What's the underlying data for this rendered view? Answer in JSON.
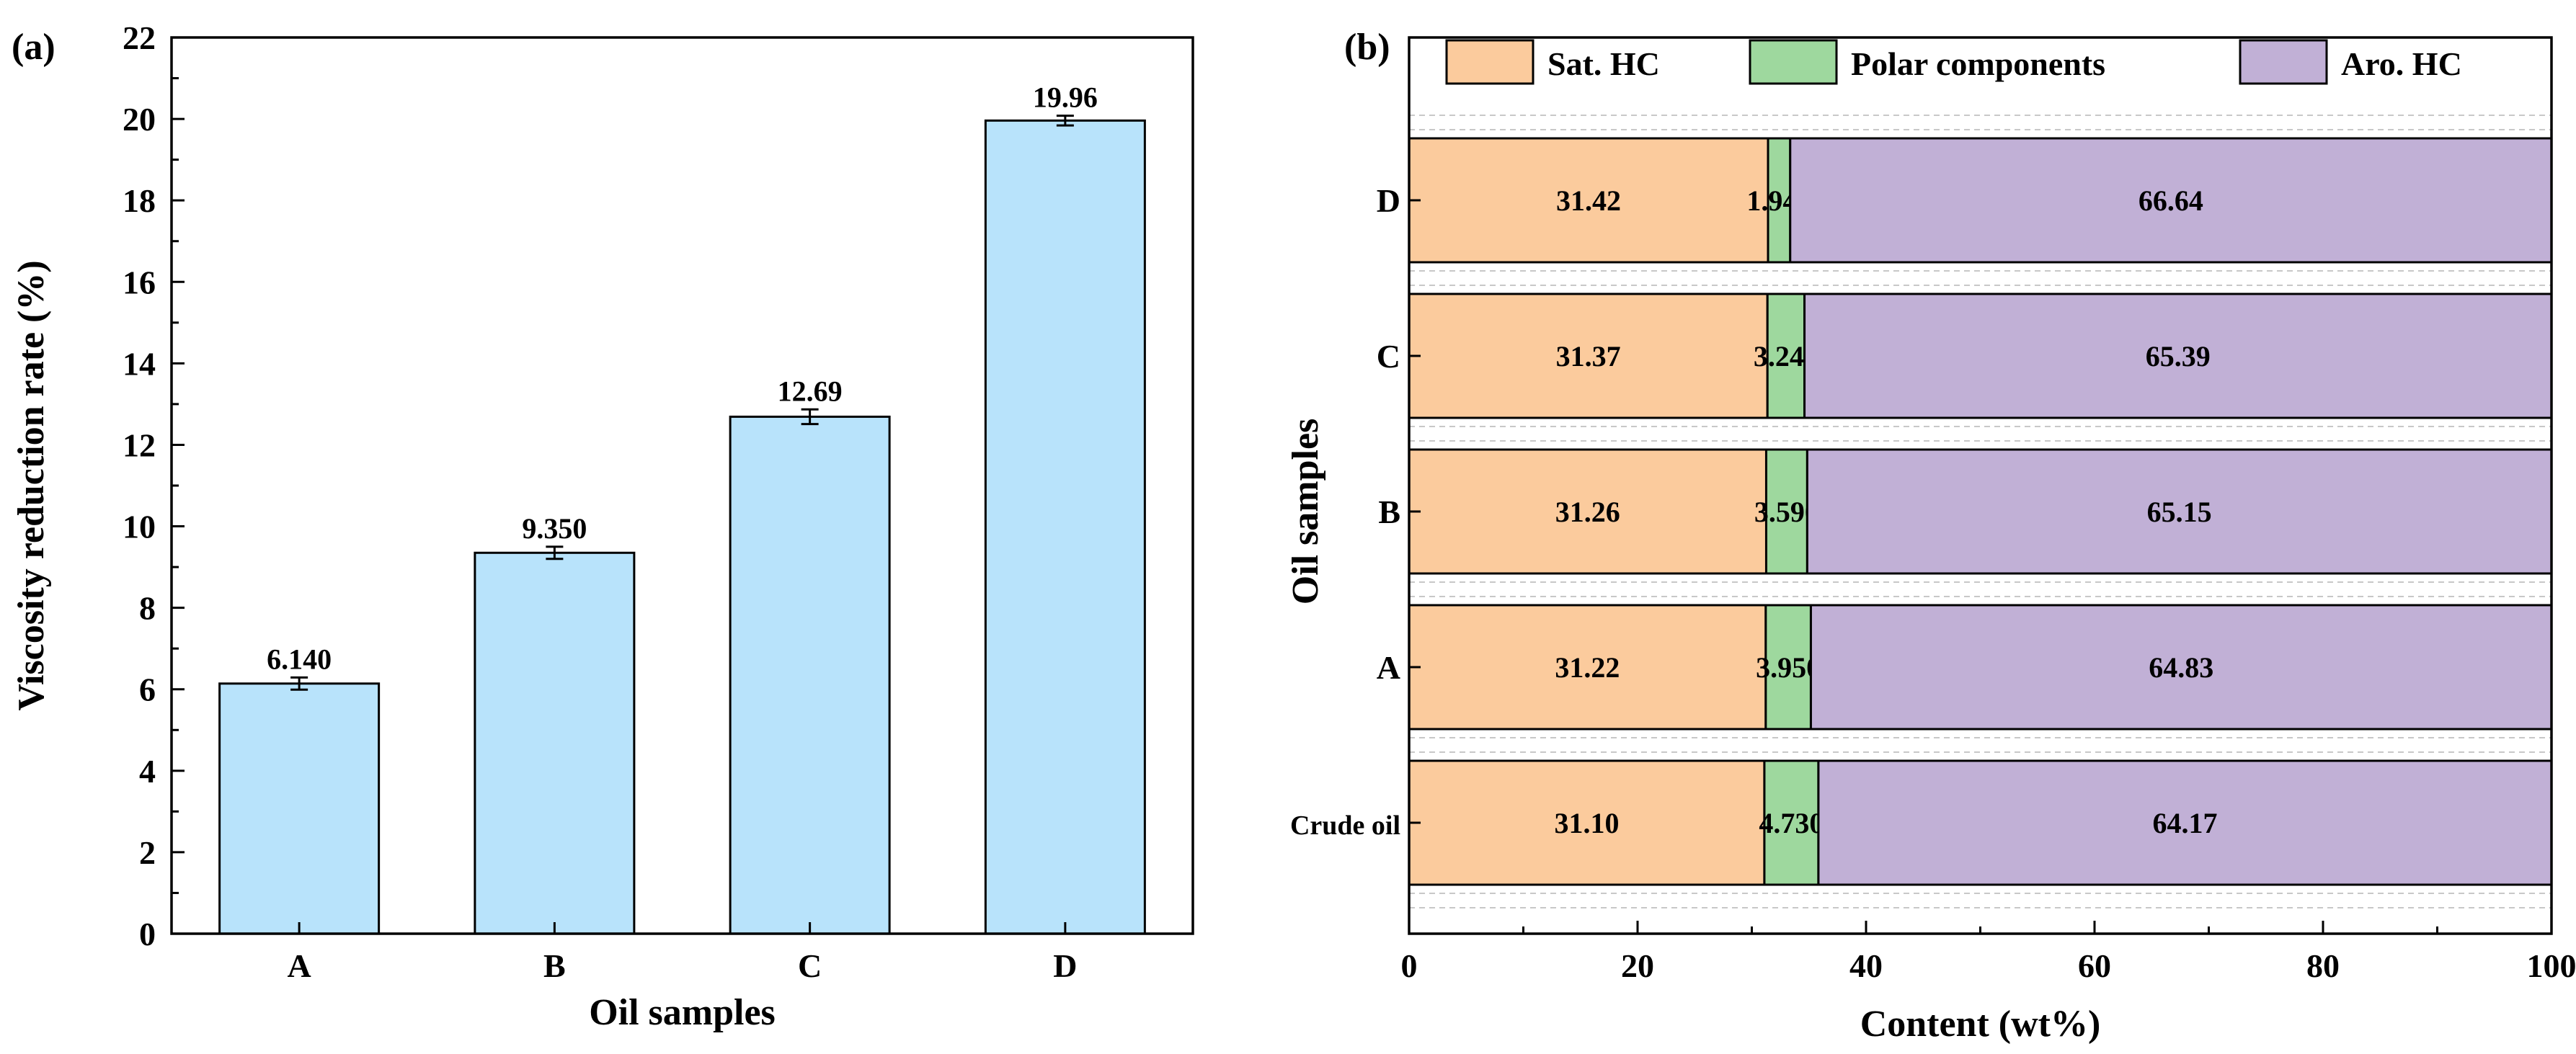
{
  "colors": {
    "bar_fill": "#b8e3fb",
    "sat_hc": "#fbcb9d",
    "polar": "#9ed89e",
    "aro_hc": "#c1b0d6",
    "axis": "#000000",
    "dashed": "#c8c8c8"
  },
  "chart_data": [
    {
      "panel_label": "(a)",
      "type": "bar",
      "title": "",
      "xlabel": "Oil samples",
      "ylabel": "Viscosity reduction rate (%)",
      "ylim": [
        0,
        22
      ],
      "yticks": [
        0,
        2,
        4,
        6,
        8,
        10,
        12,
        14,
        16,
        18,
        20,
        22
      ],
      "categories": [
        "A",
        "B",
        "C",
        "D"
      ],
      "values": [
        6.14,
        9.35,
        12.69,
        19.96
      ],
      "value_labels": [
        "6.140",
        "9.350",
        "12.69",
        "19.96"
      ],
      "errors": [
        0.15,
        0.15,
        0.18,
        0.12
      ]
    },
    {
      "panel_label": "(b)",
      "type": "bar",
      "orientation": "horizontal",
      "stacked": true,
      "xlabel": "Content (wt%)",
      "ylabel": "Oil samples",
      "xlim": [
        0,
        100
      ],
      "xticks": [
        0,
        20,
        40,
        60,
        80,
        100
      ],
      "legend_position": "top",
      "categories": [
        "Crude oil",
        "A",
        "B",
        "C",
        "D"
      ],
      "series": [
        {
          "name": "Sat. HC",
          "values": [
            31.1,
            31.22,
            31.26,
            31.37,
            31.42
          ],
          "labels": [
            "31.10",
            "31.22",
            "31.26",
            "31.37",
            "31.42"
          ]
        },
        {
          "name": "Polar components",
          "values": [
            4.73,
            3.95,
            3.59,
            3.24,
            1.94
          ],
          "labels": [
            "4.730",
            "3.950",
            "3.590",
            "3.240",
            "1.940"
          ]
        },
        {
          "name": "Aro. HC",
          "values": [
            64.17,
            64.83,
            65.15,
            65.39,
            66.64
          ],
          "labels": [
            "64.17",
            "64.83",
            "65.15",
            "65.39",
            "66.64"
          ]
        }
      ]
    }
  ]
}
